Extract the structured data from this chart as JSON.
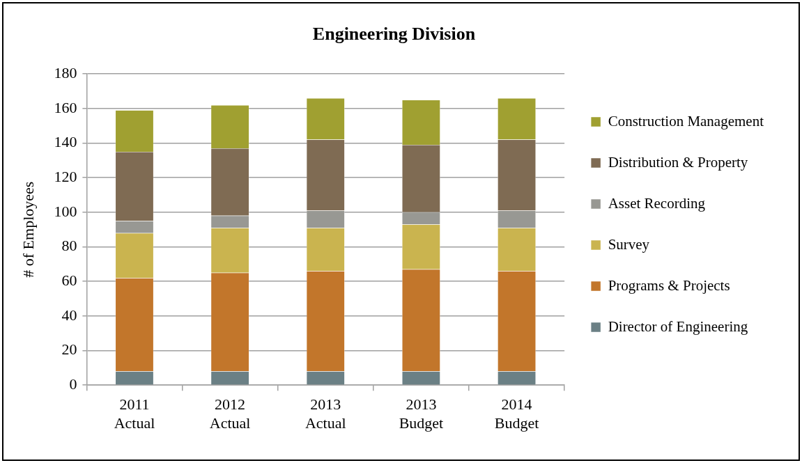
{
  "chart_data": {
    "type": "bar",
    "stacked": true,
    "title": "Engineering Division",
    "ylabel": "# of Employees",
    "categories": [
      "2011 Actual",
      "2012 Actual",
      "2013 Actual",
      "2013 Budget",
      "2014 Budget"
    ],
    "series": [
      {
        "name": "Director of Engineering",
        "color": "#6b8085",
        "values": [
          8,
          8,
          8,
          8,
          8
        ]
      },
      {
        "name": "Programs & Projects",
        "color": "#c2762b",
        "values": [
          54,
          57,
          58,
          59,
          58
        ]
      },
      {
        "name": "Survey",
        "color": "#cab44f",
        "values": [
          26,
          26,
          25,
          26,
          25
        ]
      },
      {
        "name": "Asset Recording",
        "color": "#989893",
        "values": [
          7,
          7,
          10,
          7,
          10
        ]
      },
      {
        "name": "Distribution & Property",
        "color": "#7f6b53",
        "values": [
          40,
          39,
          41,
          39,
          41
        ]
      },
      {
        "name": "Construction Management",
        "color": "#a0a031",
        "values": [
          24,
          25,
          24,
          26,
          24
        ]
      }
    ],
    "ylim": [
      0,
      180
    ],
    "yticks": [
      0,
      20,
      40,
      60,
      80,
      100,
      120,
      140,
      160,
      180
    ],
    "grid": "y",
    "legend": "right"
  }
}
